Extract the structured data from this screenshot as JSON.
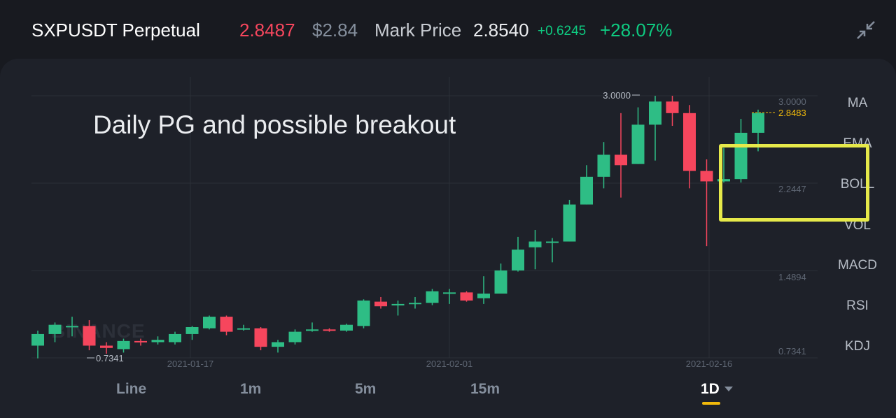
{
  "header": {
    "symbol": "SXPUSDT Perpetual",
    "last_price": "2.8487",
    "usd_price": "$2.84",
    "mark_label": "Mark Price",
    "mark_value": "2.8540",
    "change_abs": "+0.6245",
    "change_pct": "+28.07%"
  },
  "colors": {
    "up": "#0ecb81",
    "up_body": "#2ebd85",
    "down": "#f6465d",
    "accent": "#f0b90b",
    "highlight": "#e6e94a"
  },
  "chart": {
    "watermark": "BINANCE",
    "annotation": "Daily PG and possible breakout",
    "high_label": "3.0000",
    "low_label": "0.7341",
    "current_label": "2.8483",
    "y_axis": [
      "3.0000",
      "2.2447",
      "1.4894",
      "0.7341"
    ],
    "x_axis": [
      "2021-01-17",
      "2021-02-01",
      "2021-02-16"
    ]
  },
  "chart_data": {
    "type": "candlestick",
    "ylim": [
      0.7341,
      3.0
    ],
    "x_ticks": [
      "2021-01-17",
      "2021-02-01",
      "2021-02-16"
    ],
    "candles": [
      [
        0.84,
        0.94,
        0.97,
        0.73
      ],
      [
        0.94,
        1.02,
        1.04,
        0.87
      ],
      [
        1.01,
        1.01,
        1.09,
        0.92
      ],
      [
        1.01,
        0.84,
        1.06,
        0.8
      ],
      [
        0.84,
        0.82,
        0.87,
        0.77
      ],
      [
        0.81,
        0.88,
        0.9,
        0.78
      ],
      [
        0.88,
        0.87,
        0.9,
        0.84
      ],
      [
        0.87,
        0.89,
        0.92,
        0.85
      ],
      [
        0.87,
        0.94,
        0.96,
        0.85
      ],
      [
        0.94,
        1.0,
        1.01,
        0.89
      ],
      [
        0.99,
        1.09,
        1.1,
        0.98
      ],
      [
        1.09,
        0.96,
        1.1,
        0.93
      ],
      [
        0.99,
        0.99,
        1.02,
        0.97
      ],
      [
        0.99,
        0.83,
        1.0,
        0.8
      ],
      [
        0.83,
        0.87,
        0.89,
        0.78
      ],
      [
        0.87,
        0.96,
        0.98,
        0.85
      ],
      [
        0.98,
        0.98,
        1.04,
        0.96
      ],
      [
        0.98,
        0.97,
        0.99,
        0.96
      ],
      [
        0.97,
        1.02,
        1.03,
        0.96
      ],
      [
        1.01,
        1.23,
        1.24,
        0.99
      ],
      [
        1.22,
        1.18,
        1.26,
        1.16
      ],
      [
        1.19,
        1.2,
        1.23,
        1.1
      ],
      [
        1.21,
        1.21,
        1.26,
        1.16
      ],
      [
        1.21,
        1.31,
        1.33,
        1.19
      ],
      [
        1.3,
        1.3,
        1.33,
        1.2
      ],
      [
        1.3,
        1.23,
        1.31,
        1.22
      ],
      [
        1.25,
        1.29,
        1.44,
        1.2
      ],
      [
        1.29,
        1.49,
        1.55,
        1.29
      ],
      [
        1.49,
        1.67,
        1.78,
        1.48
      ],
      [
        1.69,
        1.74,
        1.84,
        1.5
      ],
      [
        1.74,
        1.74,
        1.77,
        1.56
      ],
      [
        1.74,
        2.06,
        2.1,
        1.74
      ],
      [
        2.06,
        2.3,
        2.4,
        2.06
      ],
      [
        2.3,
        2.49,
        2.6,
        2.2
      ],
      [
        2.49,
        2.4,
        2.85,
        2.12
      ],
      [
        2.41,
        2.75,
        2.9,
        2.41
      ],
      [
        2.75,
        2.95,
        3.0,
        2.44
      ],
      [
        2.95,
        2.85,
        3.0,
        2.74
      ],
      [
        2.85,
        2.35,
        2.92,
        2.2
      ],
      [
        2.35,
        2.26,
        2.45,
        1.7
      ],
      [
        2.26,
        2.28,
        2.55,
        2.25
      ],
      [
        2.28,
        2.68,
        2.8,
        2.25
      ],
      [
        2.68,
        2.85,
        2.88,
        2.52
      ]
    ]
  },
  "indicators": [
    "MA",
    "EMA",
    "BOLL",
    "VOL",
    "MACD",
    "RSI",
    "KDJ"
  ],
  "timeframes": [
    "Line",
    "1m",
    "5m",
    "15m",
    "1D"
  ]
}
